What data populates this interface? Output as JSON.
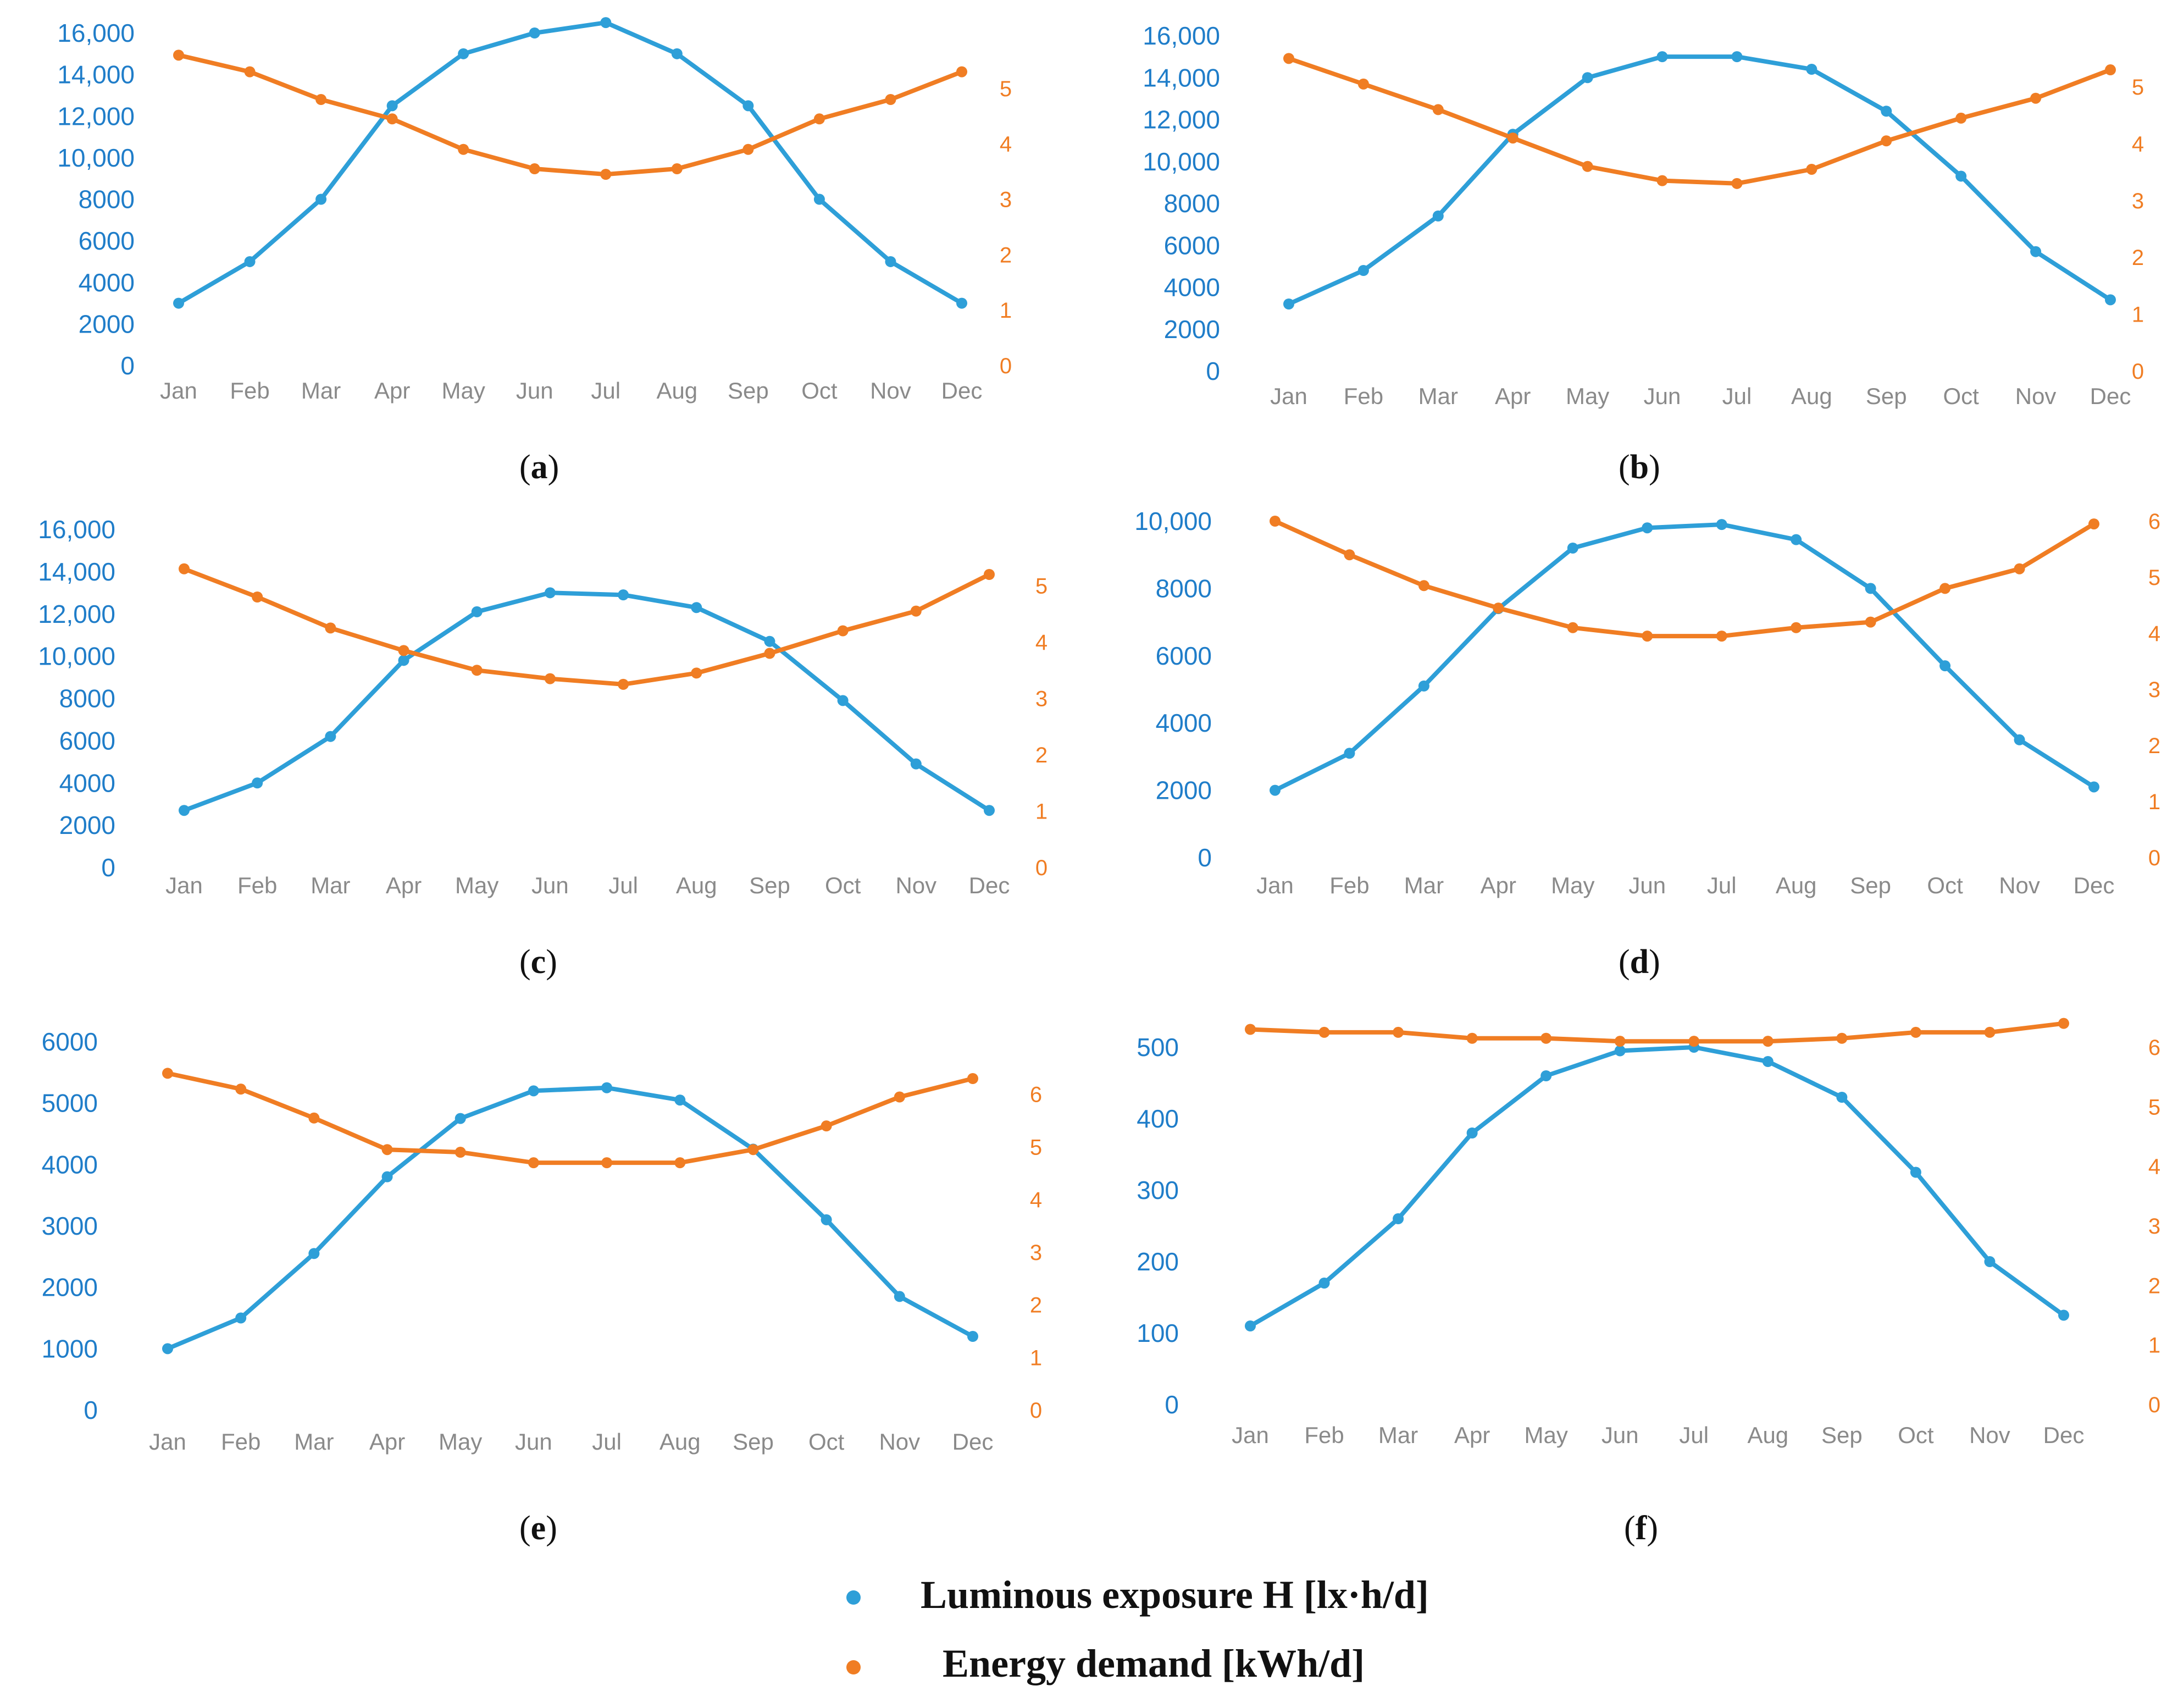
{
  "colors": {
    "luminous": "#2E9FD8",
    "energy": "#F07D23",
    "left_axis_text": "#1F7DC9",
    "right_axis_text": "#F07D23",
    "month_text": "#8A8A8A"
  },
  "months": [
    "Jan",
    "Feb",
    "Mar",
    "Apr",
    "May",
    "Jun",
    "Jul",
    "Aug",
    "Sep",
    "Oct",
    "Nov",
    "Dec"
  ],
  "legend": {
    "luminous": "Luminous exposure H [lx·h/d]",
    "energy": "Energy demand [kWh/d]"
  },
  "chart_data": [
    {
      "type": "line",
      "label": "a",
      "categories": [
        "Jan",
        "Feb",
        "Mar",
        "Apr",
        "May",
        "Jun",
        "Jul",
        "Aug",
        "Sep",
        "Oct",
        "Nov",
        "Dec"
      ],
      "left_ticks": [
        "0",
        "2000",
        "4000",
        "6000",
        "8000",
        "10,000",
        "12,000",
        "14,000",
        "16,000"
      ],
      "left_ylim": [
        0,
        16000
      ],
      "right_ticks": [
        "0",
        "1",
        "2",
        "3",
        "4",
        "5"
      ],
      "right_ylim": [
        0,
        6
      ],
      "series": [
        {
          "name": "Luminous exposure H [lx·h/d]",
          "axis": "left",
          "values": [
            3000,
            5000,
            8000,
            12500,
            15000,
            16000,
            16500,
            15000,
            12500,
            8000,
            5000,
            3000
          ]
        },
        {
          "name": "Energy demand [kWh/d]",
          "axis": "right",
          "values": [
            5.6,
            5.3,
            4.8,
            4.45,
            3.9,
            3.55,
            3.45,
            3.55,
            3.9,
            4.45,
            4.8,
            5.3
          ]
        }
      ]
    },
    {
      "type": "line",
      "label": "b",
      "categories": [
        "Jan",
        "Feb",
        "Mar",
        "Apr",
        "May",
        "Jun",
        "Jul",
        "Aug",
        "Sep",
        "Oct",
        "Nov",
        "Dec"
      ],
      "left_ticks": [
        "0",
        "2000",
        "4000",
        "6000",
        "8000",
        "10,000",
        "12,000",
        "14,000",
        "16,000"
      ],
      "left_ylim": [
        0,
        16000
      ],
      "right_ticks": [
        "0",
        "1",
        "2",
        "3",
        "4",
        "5"
      ],
      "right_ylim": [
        0,
        5.9
      ],
      "series": [
        {
          "name": "Luminous exposure H [lx·h/d]",
          "axis": "left",
          "values": [
            3200,
            4800,
            7400,
            11300,
            14000,
            15000,
            15000,
            14400,
            12400,
            9300,
            5700,
            3400
          ]
        },
        {
          "name": "Energy demand [kWh/d]",
          "axis": "right",
          "values": [
            5.5,
            5.05,
            4.6,
            4.1,
            3.6,
            3.35,
            3.3,
            3.55,
            4.05,
            4.45,
            4.8,
            5.3
          ]
        }
      ]
    },
    {
      "type": "line",
      "label": "c",
      "categories": [
        "Jan",
        "Feb",
        "Mar",
        "Apr",
        "May",
        "Jun",
        "Jul",
        "Aug",
        "Sep",
        "Oct",
        "Nov",
        "Dec"
      ],
      "left_ticks": [
        "0",
        "2000",
        "4000",
        "6000",
        "8000",
        "10,000",
        "12,000",
        "14,000",
        "16,000"
      ],
      "left_ylim": [
        0,
        16000
      ],
      "right_ticks": [
        "0",
        "1",
        "2",
        "3",
        "4",
        "5"
      ],
      "right_ylim": [
        0,
        6
      ],
      "series": [
        {
          "name": "Luminous exposure H [lx·h/d]",
          "axis": "left",
          "values": [
            2700,
            4000,
            6200,
            9800,
            12100,
            13000,
            12900,
            12300,
            10700,
            7900,
            4900,
            2700
          ]
        },
        {
          "name": "Energy demand [kWh/d]",
          "axis": "right",
          "values": [
            5.3,
            4.8,
            4.25,
            3.85,
            3.5,
            3.35,
            3.25,
            3.45,
            3.8,
            4.2,
            4.55,
            5.2
          ]
        }
      ]
    },
    {
      "type": "line",
      "label": "d",
      "categories": [
        "Jan",
        "Feb",
        "Mar",
        "Apr",
        "May",
        "Jun",
        "Jul",
        "Aug",
        "Sep",
        "Oct",
        "Nov",
        "Dec"
      ],
      "left_ticks": [
        "0",
        "2000",
        "4000",
        "6000",
        "8000",
        "10,000"
      ],
      "left_ylim": [
        0,
        10000
      ],
      "right_ticks": [
        "0",
        "1",
        "2",
        "3",
        "4",
        "5",
        "6"
      ],
      "right_ylim": [
        0,
        6
      ],
      "series": [
        {
          "name": "Luminous exposure H [lx·h/d]",
          "axis": "left",
          "values": [
            2000,
            3100,
            5100,
            7400,
            9200,
            9800,
            9900,
            9450,
            8000,
            5700,
            3500,
            2100
          ]
        },
        {
          "name": "Energy demand [kWh/d]",
          "axis": "right",
          "values": [
            6.0,
            5.4,
            4.85,
            4.45,
            4.1,
            3.95,
            3.95,
            4.1,
            4.2,
            4.8,
            5.15,
            5.95
          ]
        }
      ]
    },
    {
      "type": "line",
      "label": "e",
      "categories": [
        "Jan",
        "Feb",
        "Mar",
        "Apr",
        "May",
        "Jun",
        "Jul",
        "Aug",
        "Sep",
        "Oct",
        "Nov",
        "Dec"
      ],
      "left_ticks": [
        "0",
        "1000",
        "2000",
        "3000",
        "4000",
        "5000",
        "6000"
      ],
      "left_ylim": [
        0,
        6000
      ],
      "right_ticks": [
        "0",
        "1",
        "2",
        "3",
        "4",
        "5",
        "6"
      ],
      "right_ylim": [
        0,
        7
      ],
      "series": [
        {
          "name": "Luminous exposure H [lx·h/d]",
          "axis": "left",
          "values": [
            1000,
            1500,
            2550,
            3800,
            4750,
            5200,
            5250,
            5050,
            4250,
            3100,
            1850,
            1200
          ]
        },
        {
          "name": "Energy demand [kWh/d]",
          "axis": "right",
          "values": [
            6.4,
            6.1,
            5.55,
            4.95,
            4.9,
            4.7,
            4.7,
            4.7,
            4.95,
            5.4,
            5.95,
            6.3
          ]
        }
      ]
    },
    {
      "type": "line",
      "label": "f",
      "categories": [
        "Jan",
        "Feb",
        "Mar",
        "Apr",
        "May",
        "Jun",
        "Jul",
        "Aug",
        "Sep",
        "Oct",
        "Nov",
        "Dec"
      ],
      "left_ticks": [
        "0",
        "100",
        "200",
        "300",
        "400",
        "500"
      ],
      "left_ylim": [
        0,
        500
      ],
      "right_ticks": [
        "0",
        "1",
        "2",
        "3",
        "4",
        "5",
        "6"
      ],
      "right_ylim": [
        0,
        6
      ],
      "series": [
        {
          "name": "Luminous exposure H [lx·h/d]",
          "axis": "left",
          "values": [
            110,
            170,
            260,
            380,
            460,
            495,
            500,
            480,
            430,
            325,
            200,
            125
          ]
        },
        {
          "name": "Energy demand [kWh/d]",
          "axis": "right",
          "values": [
            6.3,
            6.25,
            6.25,
            6.15,
            6.15,
            6.1,
            6.1,
            6.1,
            6.15,
            6.25,
            6.25,
            6.4
          ]
        }
      ]
    }
  ]
}
